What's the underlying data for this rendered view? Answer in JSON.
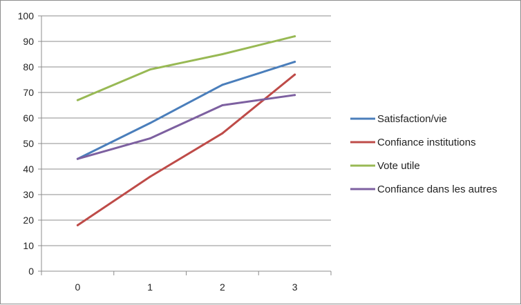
{
  "chart_data": {
    "type": "line",
    "x": [
      0,
      1,
      2,
      3
    ],
    "xticks": [
      "0",
      "1",
      "2",
      "3"
    ],
    "ylim": [
      0,
      100
    ],
    "yticks": [
      0,
      10,
      20,
      30,
      40,
      50,
      60,
      70,
      80,
      90,
      100
    ],
    "grid": "horizontal",
    "legend": "right",
    "title": "",
    "xlabel": "",
    "ylabel": "",
    "series": [
      {
        "name": "Satisfaction/vie",
        "color": "#4a7ebb",
        "values": [
          44,
          58,
          73,
          82
        ]
      },
      {
        "name": "Confiance institutions",
        "color": "#be4b48",
        "values": [
          18,
          37,
          54,
          77
        ]
      },
      {
        "name": "Vote utile",
        "color": "#98b954",
        "values": [
          67,
          79,
          85,
          92
        ]
      },
      {
        "name": "Confiance dans les autres",
        "color": "#7d60a0",
        "values": [
          44,
          52,
          65,
          69
        ]
      }
    ]
  }
}
